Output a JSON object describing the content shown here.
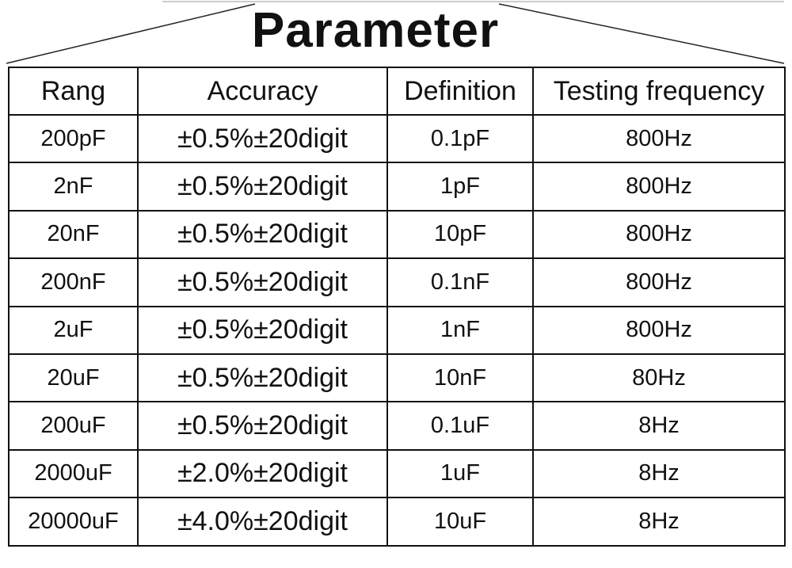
{
  "header": {
    "title": "Parameter"
  },
  "table": {
    "columns": [
      "Rang",
      "Accuracy",
      "Definition",
      "Testing frequency"
    ],
    "rows": [
      [
        "200pF",
        "±0.5%±20digit",
        "0.1pF",
        "800Hz"
      ],
      [
        "2nF",
        "±0.5%±20digit",
        "1pF",
        "800Hz"
      ],
      [
        "20nF",
        "±0.5%±20digit",
        "10pF",
        "800Hz"
      ],
      [
        "200nF",
        "±0.5%±20digit",
        "0.1nF",
        "800Hz"
      ],
      [
        "2uF",
        "±0.5%±20digit",
        "1nF",
        "800Hz"
      ],
      [
        "20uF",
        "±0.5%±20digit",
        "10nF",
        "80Hz"
      ],
      [
        "200uF",
        "±0.5%±20digit",
        "0.1uF",
        "8Hz"
      ],
      [
        "2000uF",
        "±2.0%±20digit",
        "1uF",
        "8Hz"
      ],
      [
        "20000uF",
        "±4.0%±20digit",
        "10uF",
        "8Hz"
      ]
    ]
  }
}
